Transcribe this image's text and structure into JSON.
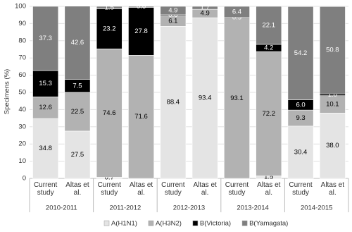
{
  "chart_data": {
    "type": "stacked_bar",
    "y_label": "Specimens (%)",
    "categories": [
      "Current study",
      "Altas et al.",
      "Current study",
      "Altas et al.",
      "Current study",
      "Altas et al.",
      "Current study",
      "Altas et al.",
      "Current study",
      "Altas et al."
    ],
    "groups": [
      "2010-2011",
      "2011-2012",
      "2012-2013",
      "2013-2014",
      "2014-2015"
    ],
    "series": [
      {
        "name": "A(H1N1)",
        "color": "#e4e4e4",
        "label_color": "#000000",
        "values": [
          34.8,
          27.5,
          0.7,
          null,
          88.4,
          93.4,
          null,
          1.5,
          30.4,
          38.0
        ],
        "value_labels": [
          "34.8",
          "27.5",
          "0.7",
          null,
          "88.4",
          "93.4",
          null,
          "1.5",
          "30.4",
          "38.0"
        ]
      },
      {
        "name": "A(H3N2)",
        "color": "#b2b2b2",
        "label_color": "#000000",
        "values": [
          12.6,
          22.5,
          74.6,
          71.6,
          6.1,
          4.9,
          93.1,
          72.2,
          9.3,
          10.1
        ],
        "value_labels": [
          "12.6",
          "22.5",
          "74.6",
          "71.6",
          "6.1",
          "4.9",
          "93.1",
          "72.2",
          "9.3",
          "10.1"
        ]
      },
      {
        "name": "B(Victoria)",
        "color": "#000000",
        "label_color": "#ffffff",
        "values": [
          15.3,
          7.5,
          23.2,
          27.8,
          0.6,
          null,
          0.5,
          4.2,
          6.0,
          1.0
        ],
        "value_labels": [
          "15.3",
          "7.5",
          "23.2",
          "27.8",
          "0.6",
          null,
          "0.5",
          "4.2",
          "6.0",
          "1.0"
        ]
      },
      {
        "name": "B(Yamagata)",
        "color": "#7f7f7f",
        "label_color": "#ffffff",
        "values": [
          37.3,
          42.6,
          1.5,
          0.6,
          4.9,
          1.7,
          6.4,
          22.1,
          54.2,
          50.8
        ],
        "value_labels": [
          "37.3",
          "42.6",
          "1.5",
          "0.6",
          "4.9",
          "1.7",
          "6.4",
          "22.1",
          "54.2",
          "50.8"
        ]
      }
    ],
    "ylim": [
      0,
      100
    ],
    "yticks": [
      0,
      10,
      20,
      30,
      40,
      50,
      60,
      70,
      80,
      90,
      100
    ],
    "grid": true,
    "legend": "bottom"
  }
}
